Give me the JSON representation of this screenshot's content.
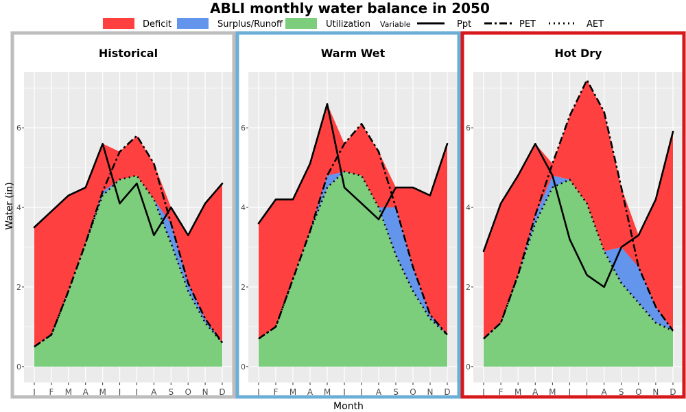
{
  "title": "ABLI monthly water balance in 2050",
  "legend": {
    "fill": [
      {
        "label": "Deficit",
        "color": "#ff4040"
      },
      {
        "label": "Surplus/Runoff",
        "color": "#6495ed"
      },
      {
        "label": "Utilization",
        "color": "#7ccd7c"
      }
    ],
    "variable_title": "Variable",
    "lines": [
      {
        "label": "Ppt",
        "style": "solid"
      },
      {
        "label": "PET",
        "style": "dashdot"
      },
      {
        "label": "AET",
        "style": "dotted"
      }
    ]
  },
  "colors": {
    "deficit": "#ff4040",
    "surplus": "#6495ed",
    "utilization": "#7ccd7c",
    "panel_bg": "#ebebeb",
    "grid": "#ffffff"
  },
  "chart_data": {
    "type": "area",
    "title": "ABLI monthly water balance in 2050",
    "xlabel": "Month",
    "ylabel": "Water (in)",
    "ylim": [
      -0.4,
      7.4
    ],
    "yticks": [
      0,
      2,
      4,
      6
    ],
    "categories": [
      "J",
      "F",
      "M",
      "A",
      "M",
      "J",
      "J",
      "A",
      "S",
      "O",
      "N",
      "D"
    ],
    "grid": true,
    "legend_position": "top",
    "panels": [
      {
        "title": "Historical",
        "border_color": "#bdbdbd",
        "series": [
          {
            "name": "Ppt",
            "values": [
              3.5,
              3.9,
              4.3,
              4.5,
              5.6,
              4.1,
              4.6,
              3.3,
              4.0,
              3.3,
              4.1,
              4.6
            ]
          },
          {
            "name": "PET",
            "values": [
              0.5,
              0.8,
              1.9,
              3.1,
              4.4,
              5.4,
              5.8,
              5.1,
              3.6,
              2.1,
              1.2,
              0.6
            ]
          },
          {
            "name": "AET",
            "values": [
              0.5,
              0.8,
              1.9,
              3.1,
              4.3,
              4.7,
              4.8,
              4.2,
              3.1,
              1.9,
              1.1,
              0.6
            ]
          }
        ]
      },
      {
        "title": "Warm Wet",
        "border_color": "#6baed6",
        "series": [
          {
            "name": "Ppt",
            "values": [
              3.6,
              4.2,
              4.2,
              5.1,
              6.6,
              4.5,
              4.1,
              3.7,
              4.5,
              4.5,
              4.3,
              5.6
            ]
          },
          {
            "name": "PET",
            "values": [
              0.7,
              1.0,
              2.2,
              3.4,
              4.8,
              5.6,
              6.1,
              5.4,
              4.0,
              2.5,
              1.3,
              0.8
            ]
          },
          {
            "name": "AET",
            "values": [
              0.7,
              1.0,
              2.2,
              3.4,
              4.5,
              4.9,
              4.8,
              4.0,
              2.8,
              1.9,
              1.2,
              0.8
            ]
          }
        ]
      },
      {
        "title": "Hot Dry",
        "border_color": "#d7191c",
        "series": [
          {
            "name": "Ppt",
            "values": [
              2.9,
              4.1,
              4.8,
              5.6,
              4.8,
              3.2,
              2.3,
              2.0,
              3.0,
              3.3,
              4.2,
              5.9
            ]
          },
          {
            "name": "PET",
            "values": [
              0.7,
              1.1,
              2.3,
              3.8,
              5.1,
              6.3,
              7.2,
              6.4,
              4.5,
              2.5,
              1.5,
              0.9
            ]
          },
          {
            "name": "AET",
            "values": [
              0.7,
              1.1,
              2.3,
              3.6,
              4.5,
              4.7,
              4.1,
              2.9,
              2.1,
              1.6,
              1.1,
              0.9
            ]
          }
        ]
      }
    ]
  }
}
